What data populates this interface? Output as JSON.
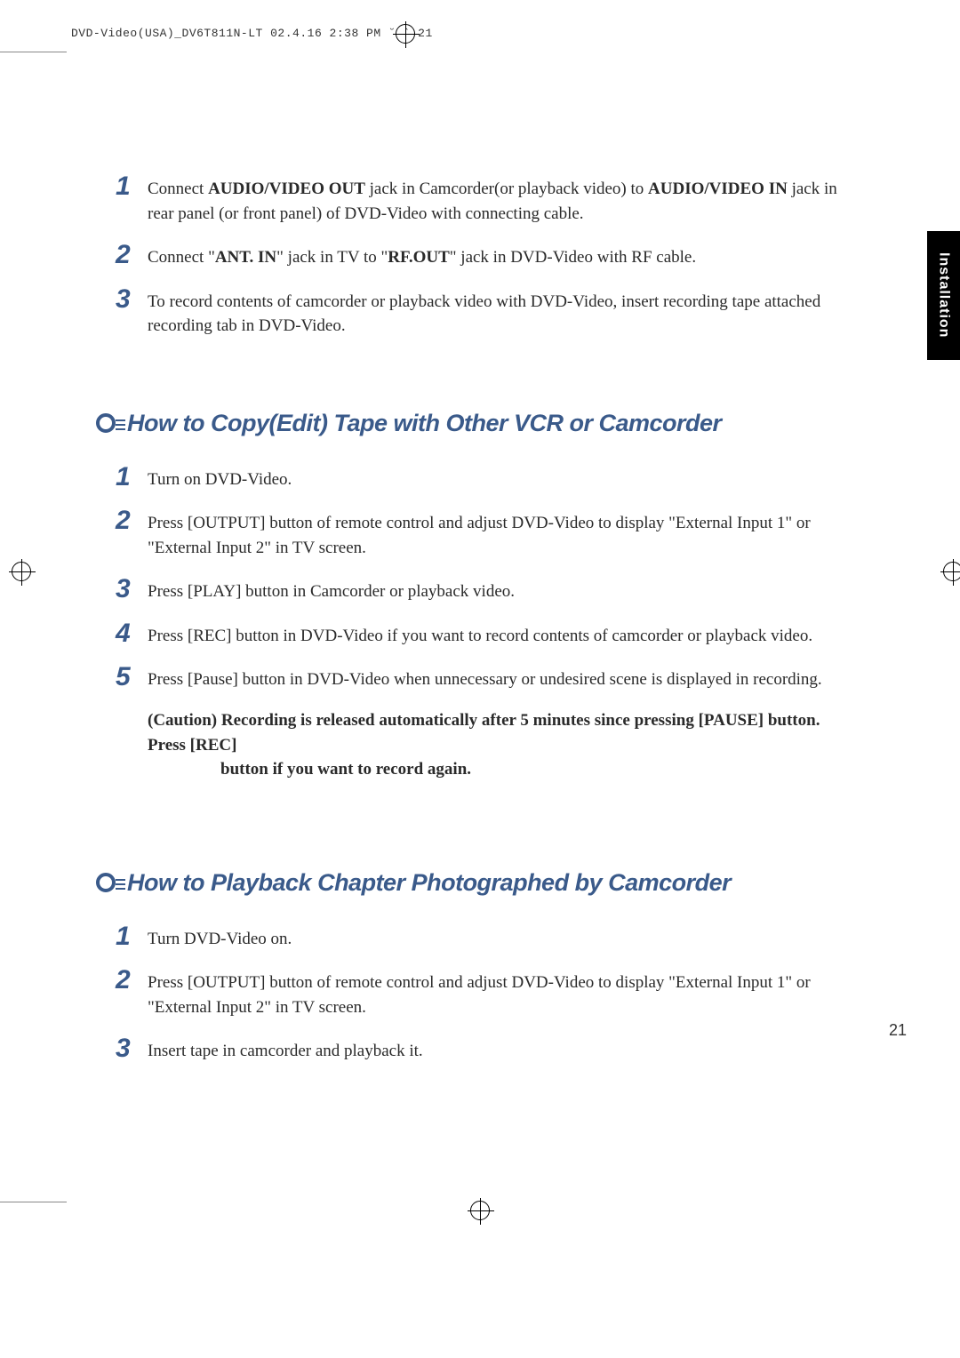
{
  "header": {
    "filename": "DVD-Video(USA)_DV6T811N-LT  02.4.16 2:38 PM  ˘  `  21"
  },
  "side_tab": {
    "label": "Installation"
  },
  "section1": {
    "items": [
      {
        "num": "1",
        "parts": [
          {
            "text": "Connect ",
            "bold": false
          },
          {
            "text": "AUDIO/VIDEO OUT",
            "bold": true
          },
          {
            "text": " jack in Camcorder(or playback video) to ",
            "bold": false
          },
          {
            "text": "AUDIO/VIDEO IN",
            "bold": true
          },
          {
            "text": " jack in rear panel (or front panel) of DVD-Video with connecting cable.",
            "bold": false
          }
        ]
      },
      {
        "num": "2",
        "parts": [
          {
            "text": "Connect \"",
            "bold": false
          },
          {
            "text": "ANT. IN",
            "bold": true
          },
          {
            "text": "\" jack in TV to \"",
            "bold": false
          },
          {
            "text": "RF.OUT",
            "bold": true
          },
          {
            "text": "\" jack in DVD-Video with RF cable.",
            "bold": false
          }
        ]
      },
      {
        "num": "3",
        "parts": [
          {
            "text": "To record contents of camcorder or playback video with DVD-Video, insert recording tape attached recording tab in DVD-Video.",
            "bold": false
          }
        ]
      }
    ]
  },
  "section2": {
    "heading": "How to Copy(Edit) Tape with Other VCR or Camcorder",
    "items": [
      {
        "num": "1",
        "parts": [
          {
            "text": "Turn on DVD-Video.",
            "bold": false
          }
        ]
      },
      {
        "num": "2",
        "parts": [
          {
            "text": "Press [OUTPUT] button of remote control and adjust DVD-Video to display \"External Input 1\" or  \"External Input 2\" in TV screen.",
            "bold": false
          }
        ]
      },
      {
        "num": "3",
        "parts": [
          {
            "text": " Press [PLAY] button in Camcorder or playback video.",
            "bold": false
          }
        ]
      },
      {
        "num": "4",
        "parts": [
          {
            "text": " Press [REC] button in DVD-Video if you want to record contents of camcorder or playback video.",
            "bold": false
          }
        ]
      },
      {
        "num": "5",
        "parts": [
          {
            "text": " Press [Pause] button in DVD-Video when unnecessary or undesired scene is displayed in recording.",
            "bold": false
          }
        ]
      }
    ],
    "caution_line1": "(Caution) Recording is released automatically after 5 minutes since pressing [PAUSE] button. Press [REC]",
    "caution_line2": "button if you want to record again."
  },
  "section3": {
    "heading": "How to Playback Chapter Photographed by Camcorder",
    "items": [
      {
        "num": "1",
        "parts": [
          {
            "text": "Turn DVD-Video on.",
            "bold": false
          }
        ]
      },
      {
        "num": "2",
        "parts": [
          {
            "text": "Press [OUTPUT] button of remote control and adjust DVD-Video to display \"External Input 1\" or  \"External Input 2\" in TV screen.",
            "bold": false
          }
        ]
      },
      {
        "num": "3",
        "parts": [
          {
            "text": " Insert tape in camcorder and playback it.",
            "bold": false
          }
        ]
      }
    ]
  },
  "page_number": "21",
  "colors": {
    "number_color": "#3a5a8a",
    "heading_color": "#3a5a8a",
    "text_color": "#2a2a2a",
    "background": "#ffffff",
    "tab_bg": "#000000",
    "tab_text": "#ffffff"
  },
  "typography": {
    "body_font": "Georgia, serif",
    "heading_font": "Arial, sans-serif",
    "number_fontsize": 30,
    "heading_fontsize": 27,
    "body_fontsize": 19
  }
}
